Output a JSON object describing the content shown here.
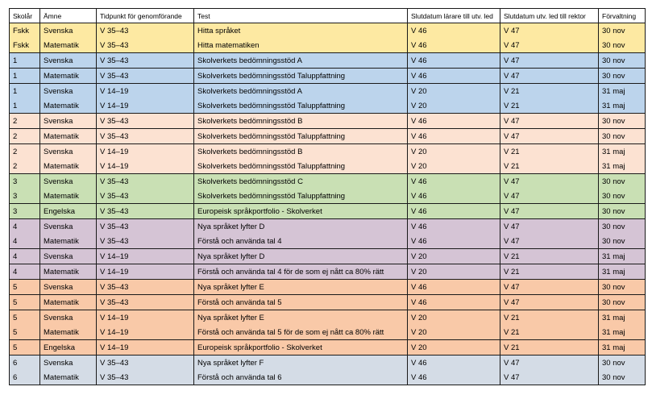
{
  "headers": [
    "Skolår",
    "Ämne",
    "Tidpunkt för genomförande",
    "Test",
    "Slutdatum lärare till utv. led",
    "Slutdatum utv. led till rektor",
    "Förvaltning"
  ],
  "colors": {
    "fskk": "#fde9a2",
    "y1": "#bcd4ec",
    "y2": "#fce2d2",
    "y3": "#c9e0b4",
    "y4": "#d5c4d5",
    "y5": "#f9c9a8",
    "y6": "#d4dce6"
  },
  "rows": [
    {
      "cells": [
        "Fskk",
        "Svenska",
        "V 35–43",
        "Hitta språket",
        "V 46",
        "V 47",
        "30 nov"
      ],
      "color": "#fde9a2",
      "group": "top"
    },
    {
      "cells": [
        "Fskk",
        "Matematik",
        "V 35–43",
        "Hitta matematiken",
        "V 46",
        "V 47",
        "30 nov"
      ],
      "color": "#fde9a2",
      "group": "bottom"
    },
    {
      "cells": [
        "1",
        "Svenska",
        "V 35–43",
        "Skolverkets bedömningsstöd A",
        "V 46",
        "V 47",
        "30 nov"
      ],
      "color": "#bcd4ec",
      "group": ""
    },
    {
      "cells": [
        "1",
        "Matematik",
        "V 35–43",
        "Skolverkets bedömningsstöd Taluppfattning",
        "V 46",
        "V 47",
        "30 nov"
      ],
      "color": "#bcd4ec",
      "group": ""
    },
    {
      "cells": [
        "1",
        "Svenska",
        "V 14–19",
        "Skolverkets bedömningsstöd A",
        "V 20",
        "V 21",
        "31 maj"
      ],
      "color": "#bcd4ec",
      "group": "top"
    },
    {
      "cells": [
        "1",
        "Matematik",
        "V 14–19",
        "Skolverkets bedömningsstöd Taluppfattning",
        "V 20",
        "V 21",
        "31 maj"
      ],
      "color": "#bcd4ec",
      "group": "bottom"
    },
    {
      "cells": [
        "2",
        "Svenska",
        "V 35–43",
        "Skolverkets bedömningsstöd B",
        "V 46",
        "V 47",
        "30 nov"
      ],
      "color": "#fce2d2",
      "group": ""
    },
    {
      "cells": [
        "2",
        "Matematik",
        "V 35–43",
        "Skolverkets bedömningsstöd Taluppfattning",
        "V 46",
        "V 47",
        "30 nov"
      ],
      "color": "#fce2d2",
      "group": ""
    },
    {
      "cells": [
        "2",
        "Svenska",
        "V 14–19",
        "Skolverkets bedömningsstöd B",
        "V 20",
        "V 21",
        "31 maj"
      ],
      "color": "#fce2d2",
      "group": "top"
    },
    {
      "cells": [
        "2",
        "Matematik",
        "V 14–19",
        "Skolverkets bedömningsstöd Taluppfattning",
        "V 20",
        "V 21",
        "31 maj"
      ],
      "color": "#fce2d2",
      "group": "bottom"
    },
    {
      "cells": [
        "3",
        "Svenska",
        "V 35–43",
        "Skolverkets bedömningsstöd C",
        "V 46",
        "V 47",
        "30 nov"
      ],
      "color": "#c9e0b4",
      "group": "top"
    },
    {
      "cells": [
        "3",
        "Matematik",
        "V 35–43",
        "Skolverkets bedömningsstöd Taluppfattning",
        "V 46",
        "V 47",
        "30 nov"
      ],
      "color": "#c9e0b4",
      "group": "bottom"
    },
    {
      "cells": [
        "3",
        "Engelska",
        "V 35–43",
        "Europeisk språkportfolio - Skolverket",
        "V 46",
        "V 47",
        "30 nov"
      ],
      "color": "#c9e0b4",
      "group": ""
    },
    {
      "cells": [
        "4",
        "Svenska",
        "V 35–43",
        "Nya språket lyfter D",
        "V 46",
        "V 47",
        "30 nov"
      ],
      "color": "#d5c4d5",
      "group": "top"
    },
    {
      "cells": [
        "4",
        "Matematik",
        "V 35–43",
        "Förstå och använda tal 4",
        "V 46",
        "V 47",
        "30 nov"
      ],
      "color": "#d5c4d5",
      "group": "bottom"
    },
    {
      "cells": [
        "4",
        "Svenska",
        "V 14–19",
        "Nya språket lyfter D",
        "V 20",
        "V 21",
        "31 maj"
      ],
      "color": "#d5c4d5",
      "group": ""
    },
    {
      "cells": [
        "4",
        "Matematik",
        "V 14–19",
        "Förstå och använda tal 4 för de som ej nått ca 80% rätt",
        "V 20",
        "V 21",
        "31 maj"
      ],
      "color": "#d5c4d5",
      "group": ""
    },
    {
      "cells": [
        "5",
        "Svenska",
        "V 35–43",
        "Nya språket lyfter E",
        "V 46",
        "V 47",
        "30 nov"
      ],
      "color": "#f9c9a8",
      "group": ""
    },
    {
      "cells": [
        "5",
        "Matematik",
        "V 35–43",
        "Förstå och använda tal 5",
        "V 46",
        "V 47",
        "30 nov"
      ],
      "color": "#f9c9a8",
      "group": ""
    },
    {
      "cells": [
        "5",
        "Svenska",
        "V 14–19",
        "Nya språket lyfter E",
        "V 20",
        "V 21",
        "31 maj"
      ],
      "color": "#f9c9a8",
      "group": "top"
    },
    {
      "cells": [
        "5",
        "Matematik",
        "V 14–19",
        "Förstå och använda tal 5 för de som ej nått ca 80% rätt",
        "V 20",
        "V 21",
        "31 maj"
      ],
      "color": "#f9c9a8",
      "group": "bottom"
    },
    {
      "cells": [
        "5",
        "Engelska",
        "V 14–19",
        "Europeisk språkportfolio - Skolverket",
        "V 20",
        "V 21",
        "31 maj"
      ],
      "color": "#f9c9a8",
      "group": ""
    },
    {
      "cells": [
        "6",
        "Svenska",
        "V 35–43",
        "Nya språket lyfter F",
        "V 46",
        "V 47",
        "30 nov"
      ],
      "color": "#d4dce6",
      "group": "top"
    },
    {
      "cells": [
        "6",
        "Matematik",
        "V 35–43",
        "Förstå och använda tal 6",
        "V 46",
        "V 47",
        "30 nov"
      ],
      "color": "#d4dce6",
      "group": "bottom"
    }
  ]
}
